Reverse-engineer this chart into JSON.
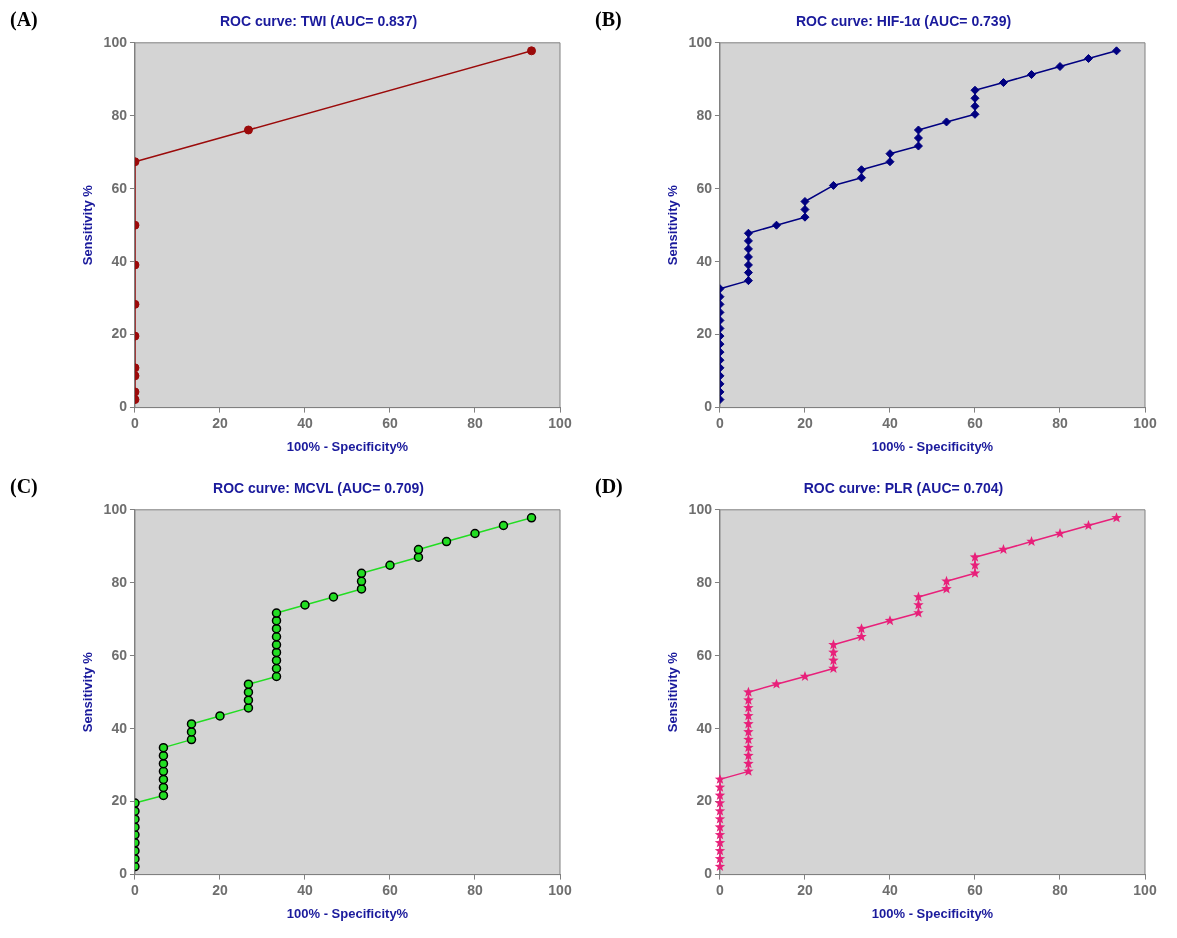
{
  "chart_data": [
    {
      "type": "line",
      "title": "ROC curve: TWI (AUC= 0.837)",
      "xlabel": "100% - Specificity%",
      "ylabel": "Sensitivity %",
      "annotations": [
        "(A)"
      ],
      "xlim": [
        0,
        100
      ],
      "ylim": [
        0,
        100
      ],
      "xticks": [
        0,
        20,
        40,
        60,
        80,
        100
      ],
      "yticks": [
        0,
        20,
        40,
        60,
        80,
        100
      ],
      "grid": false,
      "marker": "circle",
      "line_style": "solid",
      "series": [
        {
          "color": "#9b0a0a",
          "x": [
            0,
            0,
            0,
            0,
            0,
            0,
            0,
            0,
            0,
            26.7,
            93.3
          ],
          "values": [
            2.2,
            4.3,
            8.7,
            10.9,
            19.6,
            28.3,
            39.1,
            50,
            67.4,
            76.1,
            97.8
          ]
        }
      ]
    },
    {
      "type": "line",
      "title": "ROC curve: HIF-1α (AUC= 0.739)",
      "xlabel": "100% - Specificity%",
      "ylabel": "Sensitivity %",
      "annotations": [
        "(B)"
      ],
      "xlim": [
        0,
        100
      ],
      "ylim": [
        0,
        100
      ],
      "xticks": [
        0,
        20,
        40,
        60,
        80,
        100
      ],
      "yticks": [
        0,
        20,
        40,
        60,
        80,
        100
      ],
      "grid": false,
      "marker": "diamond",
      "line_style": "solid",
      "series": [
        {
          "color": "#000080",
          "x": [
            0,
            0,
            0,
            0,
            0,
            0,
            0,
            0,
            0,
            0,
            0,
            0,
            0,
            0,
            0,
            6.7,
            6.7,
            6.7,
            6.7,
            6.7,
            6.7,
            6.7,
            13.3,
            20,
            20,
            20,
            26.7,
            33.3,
            33.3,
            40,
            40,
            46.7,
            46.7,
            46.7,
            53.3,
            60,
            60,
            60,
            60,
            66.7,
            73.3,
            80,
            86.7,
            93.3
          ],
          "values": [
            2.2,
            4.3,
            6.5,
            8.7,
            10.9,
            13,
            15.2,
            17.4,
            19.6,
            21.7,
            23.9,
            26.1,
            28.3,
            30.4,
            32.6,
            34.8,
            37,
            39.1,
            41.3,
            43.5,
            45.7,
            47.8,
            50,
            52.2,
            54.3,
            56.5,
            60.9,
            63,
            65.2,
            67.4,
            69.6,
            71.7,
            73.9,
            76.1,
            78.3,
            80.4,
            82.6,
            84.8,
            87,
            89.1,
            91.3,
            93.5,
            95.7,
            97.8
          ]
        }
      ]
    },
    {
      "type": "line",
      "title": "ROC curve: MCVL (AUC= 0.709)",
      "xlabel": "100% - Specificity%",
      "ylabel": "Sensitivity %",
      "annotations": [
        "(C)"
      ],
      "xlim": [
        0,
        100
      ],
      "ylim": [
        0,
        100
      ],
      "xticks": [
        0,
        20,
        40,
        60,
        80,
        100
      ],
      "yticks": [
        0,
        20,
        40,
        60,
        80,
        100
      ],
      "grid": false,
      "marker": "circle",
      "line_style": "solid",
      "series": [
        {
          "color": "#22dd22",
          "x": [
            0,
            0,
            0,
            0,
            0,
            0,
            0,
            0,
            0,
            6.7,
            6.7,
            6.7,
            6.7,
            6.7,
            6.7,
            6.7,
            13.3,
            13.3,
            13.3,
            20,
            26.7,
            26.7,
            26.7,
            26.7,
            33.3,
            33.3,
            33.3,
            33.3,
            33.3,
            33.3,
            33.3,
            33.3,
            33.3,
            40,
            46.7,
            53.3,
            53.3,
            53.3,
            60,
            66.7,
            66.7,
            73.3,
            80,
            86.7,
            93.3
          ],
          "values": [
            2.2,
            4.3,
            6.5,
            8.7,
            10.9,
            13,
            15.2,
            17.4,
            19.6,
            21.7,
            23.9,
            26.1,
            28.3,
            30.4,
            32.6,
            34.8,
            37,
            39.1,
            41.3,
            43.5,
            45.7,
            47.8,
            50,
            52.2,
            54.3,
            56.5,
            58.7,
            60.9,
            63,
            65.2,
            67.4,
            69.6,
            71.7,
            73.9,
            76.1,
            78.3,
            80.4,
            82.6,
            84.8,
            87,
            89.1,
            91.3,
            93.5,
            95.7,
            97.8
          ]
        }
      ]
    },
    {
      "type": "line",
      "title": "ROC curve: PLR (AUC= 0.704)",
      "xlabel": "100% - Specificity%",
      "ylabel": "Sensitivity %",
      "annotations": [
        "(D)"
      ],
      "xlim": [
        0,
        100
      ],
      "ylim": [
        0,
        100
      ],
      "xticks": [
        0,
        20,
        40,
        60,
        80,
        100
      ],
      "yticks": [
        0,
        20,
        40,
        60,
        80,
        100
      ],
      "grid": false,
      "marker": "star",
      "line_style": "solid",
      "series": [
        {
          "color": "#e8207a",
          "x": [
            0,
            0,
            0,
            0,
            0,
            0,
            0,
            0,
            0,
            0,
            0,
            0,
            6.7,
            6.7,
            6.7,
            6.7,
            6.7,
            6.7,
            6.7,
            6.7,
            6.7,
            6.7,
            6.7,
            13.3,
            20,
            26.7,
            26.7,
            26.7,
            26.7,
            33.3,
            33.3,
            40,
            46.7,
            46.7,
            46.7,
            53.3,
            53.3,
            60,
            60,
            60,
            66.7,
            73.3,
            80,
            86.7,
            93.3
          ],
          "values": [
            2.2,
            4.3,
            6.5,
            8.7,
            10.9,
            13,
            15.2,
            17.4,
            19.6,
            21.7,
            23.9,
            26.1,
            28.3,
            30.4,
            32.6,
            34.8,
            37,
            39.1,
            41.3,
            43.5,
            45.7,
            47.8,
            50,
            52.2,
            54.3,
            56.5,
            58.7,
            60.9,
            63,
            65.2,
            67.4,
            69.6,
            71.7,
            73.9,
            76.1,
            78.3,
            80.4,
            82.6,
            84.8,
            87,
            89.1,
            91.3,
            93.5,
            95.7,
            97.8
          ]
        }
      ]
    }
  ]
}
